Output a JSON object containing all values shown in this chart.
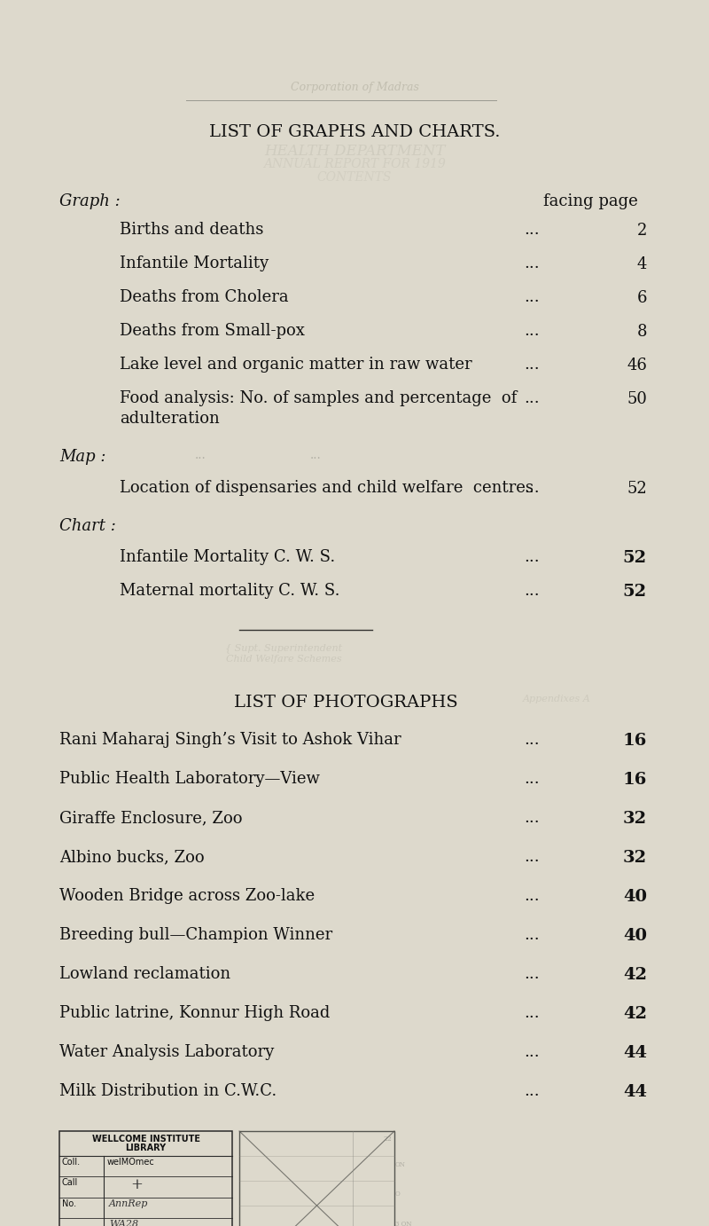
{
  "bg_color": "#ddd9cc",
  "title1": "LIST OF GRAPHS AND CHARTS.",
  "section1_label": "Graph :",
  "section1_right": "facing page",
  "graph_items": [
    {
      "text": "Births and deaths",
      "page": "2"
    },
    {
      "text": "Infantile Mortality",
      "page": "4"
    },
    {
      "text": "Deaths from Cholera",
      "page": "6"
    },
    {
      "text": "Deaths from Small-pox",
      "page": "8"
    },
    {
      "text": "Lake level and organic matter in raw water",
      "page": "46"
    },
    {
      "text": "Food analysis: No. of samples and percentage  of\nadulteration",
      "page": "50"
    }
  ],
  "section2_label": "Map :",
  "map_items": [
    {
      "text": "Location of dispensaries and child welfare  centres",
      "page": "52"
    }
  ],
  "section3_label": "Chart :",
  "chart_items": [
    {
      "text": "Infantile Mortality C. W. S.",
      "page": "52"
    },
    {
      "text": "Maternal mortality C. W. S.",
      "page": "52"
    }
  ],
  "title2": "LIST OF PHOTOGRAPHS",
  "photo_items": [
    {
      "text": "Rani Maharaj Singh’s Visit to Ashok Vihar",
      "page": "16"
    },
    {
      "text": "Public Health Laboratory—View",
      "page": "16"
    },
    {
      "text": "Giraffe Enclosure, Zoo",
      "page": "32"
    },
    {
      "text": "Albino bucks, Zoo",
      "page": "32"
    },
    {
      "text": "Wooden Bridge across Zoo-lake",
      "page": "40"
    },
    {
      "text": "Breeding bull—Champion Winner",
      "page": "40"
    },
    {
      "text": "Lowland reclamation",
      "page": "42"
    },
    {
      "text": "Public latrine, Konnur High Road",
      "page": "42"
    },
    {
      "text": "Water Analysis Laboratory",
      "page": "44"
    },
    {
      "text": "Milk Distribution in C.W.C.",
      "page": "44"
    }
  ]
}
